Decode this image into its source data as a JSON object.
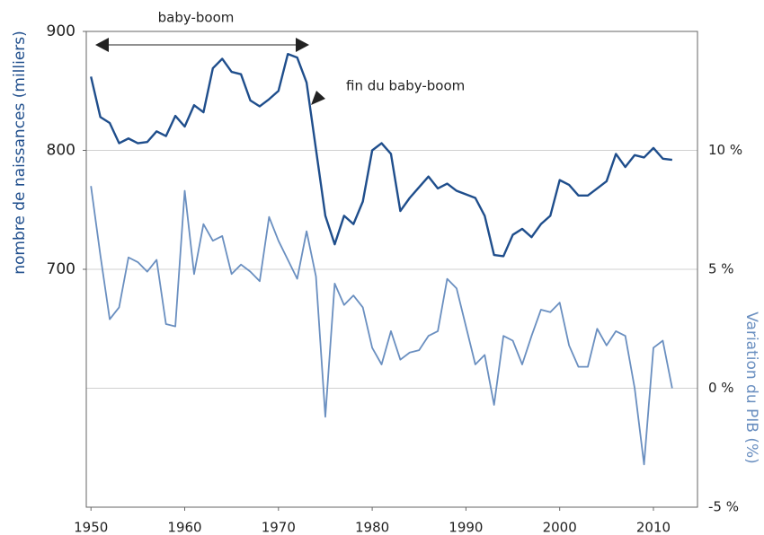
{
  "chart_data": {
    "type": "line",
    "axis_label_left": "nombre de naissances (milliers)",
    "axis_label_right": "Variation du PIB (%)",
    "annotations": [
      "baby-boom",
      "fin du baby-boom"
    ],
    "x": [
      1950,
      1951,
      1952,
      1953,
      1954,
      1955,
      1956,
      1957,
      1958,
      1959,
      1960,
      1961,
      1962,
      1963,
      1964,
      1965,
      1966,
      1967,
      1968,
      1969,
      1970,
      1971,
      1972,
      1973,
      1974,
      1975,
      1976,
      1977,
      1978,
      1979,
      1980,
      1981,
      1982,
      1983,
      1984,
      1985,
      1986,
      1987,
      1988,
      1989,
      1990,
      1991,
      1992,
      1993,
      1994,
      1995,
      1996,
      1997,
      1998,
      1999,
      2000,
      2001,
      2002,
      2003,
      2004,
      2005,
      2006,
      2007,
      2008,
      2009,
      2010,
      2011,
      2012
    ],
    "series": [
      {
        "name": "nombre de naissances (milliers)",
        "color": "#1f4e8c",
        "axis": "y",
        "values": [
          862,
          828,
          823,
          806,
          810,
          806,
          807,
          816,
          812,
          829,
          820,
          838,
          832,
          869,
          877,
          866,
          864,
          842,
          837,
          843,
          850,
          881,
          878,
          857,
          801,
          745,
          721,
          745,
          738,
          757,
          800,
          806,
          797,
          749,
          760,
          769,
          778,
          768,
          772,
          766,
          763,
          760,
          745,
          712,
          711,
          729,
          734,
          727,
          738,
          745,
          775,
          771,
          762,
          762,
          768,
          774,
          797,
          786,
          796,
          794,
          802,
          793,
          792
        ]
      },
      {
        "name": "Variation du PIB (%)",
        "color": "#6a8fc0",
        "axis": "y2",
        "values": [
          8.5,
          5.6,
          2.9,
          3.4,
          5.5,
          5.3,
          4.9,
          5.4,
          2.7,
          2.6,
          8.3,
          4.8,
          6.9,
          6.2,
          6.4,
          4.8,
          5.2,
          4.9,
          4.5,
          7.2,
          6.2,
          5.4,
          4.6,
          6.6,
          4.7,
          -1.2,
          4.4,
          3.5,
          3.9,
          3.4,
          1.7,
          1.0,
          2.4,
          1.2,
          1.5,
          1.6,
          2.2,
          2.4,
          4.6,
          4.2,
          2.6,
          1.0,
          1.4,
          -0.7,
          2.2,
          2.0,
          1.0,
          2.2,
          3.3,
          3.2,
          3.6,
          1.8,
          0.9,
          0.9,
          2.5,
          1.8,
          2.4,
          2.2,
          0.0,
          -3.2,
          1.7,
          2.0,
          0.0
        ]
      }
    ],
    "xlim": [
      1949.5,
      2014.7
    ],
    "xticks": [
      1950,
      1960,
      1970,
      1980,
      1990,
      2000,
      2010
    ],
    "ylim": [
      500,
      900
    ],
    "yticks": [
      700,
      800,
      900
    ],
    "y2lim": [
      -5,
      15
    ],
    "y2ticks": [
      {
        "value": -5,
        "label": "-5 %"
      },
      {
        "value": 0,
        "label": "0 %"
      },
      {
        "value": 5,
        "label": "5 %"
      },
      {
        "value": 10,
        "label": "10 %"
      }
    ],
    "grid": true
  }
}
